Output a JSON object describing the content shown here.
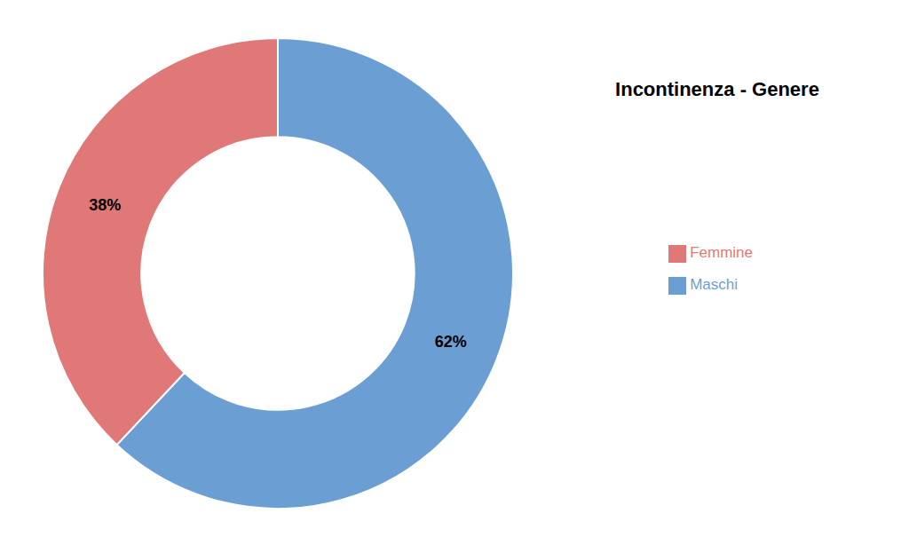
{
  "chart_data": {
    "type": "donut",
    "title": "Incontinenza - Genere",
    "categories": [
      "Maschi",
      "Femmine"
    ],
    "values": [
      62,
      38
    ],
    "value_labels": [
      "62%",
      "38%"
    ],
    "data_labels": true,
    "colors": [
      "#6B9FD4",
      "#E07878"
    ],
    "legend": "right"
  }
}
